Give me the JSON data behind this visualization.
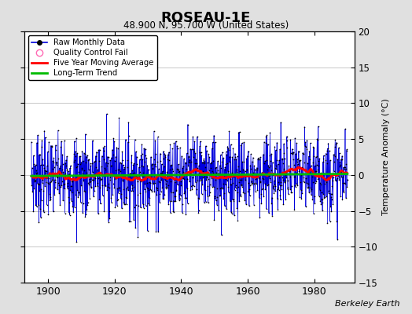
{
  "title": "ROSEAU-1E",
  "subtitle": "48.900 N, 95.700 W (United States)",
  "ylabel": "Temperature Anomaly (°C)",
  "credit": "Berkeley Earth",
  "year_start": 1895,
  "year_end": 1990,
  "ylim": [
    -15,
    20
  ],
  "yticks": [
    -15,
    -10,
    -5,
    0,
    5,
    10,
    15,
    20
  ],
  "xticks": [
    1900,
    1920,
    1940,
    1960,
    1980
  ],
  "xlim": [
    1893,
    1992
  ],
  "bg_color": "#e0e0e0",
  "plot_bg_color": "#ffffff",
  "raw_line_color": "#0000dd",
  "raw_dot_color": "#000000",
  "ma_color": "#ff0000",
  "trend_color": "#00bb00",
  "qc_color": "#ff69b4",
  "grid_color": "#c8c8c8",
  "seed": 7
}
